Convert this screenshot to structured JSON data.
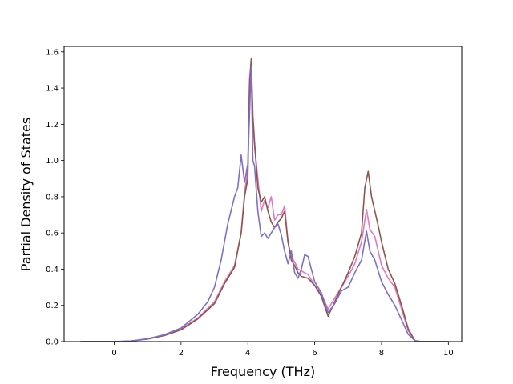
{
  "chart_data": {
    "type": "line",
    "title": "",
    "xlabel": "Frequency (THz)",
    "ylabel": "Partial Density of States",
    "xlim": [
      -1.5,
      10.4
    ],
    "ylim": [
      0,
      1.63
    ],
    "xticks": [
      0,
      2,
      4,
      6,
      8,
      10
    ],
    "yticks": [
      0.0,
      0.2,
      0.4,
      0.6,
      0.8,
      1.0,
      1.2,
      1.4,
      1.6
    ],
    "grid": false,
    "legend": "none",
    "series": [
      {
        "color": "#e377c2",
        "points": [
          [
            -1.0,
            0
          ],
          [
            0,
            0
          ],
          [
            0.5,
            0.003
          ],
          [
            1.0,
            0.015
          ],
          [
            1.5,
            0.035
          ],
          [
            2.0,
            0.07
          ],
          [
            2.5,
            0.13
          ],
          [
            3.0,
            0.22
          ],
          [
            3.3,
            0.33
          ],
          [
            3.6,
            0.42
          ],
          [
            3.8,
            0.6
          ],
          [
            3.9,
            0.82
          ],
          [
            4.0,
            0.95
          ],
          [
            4.05,
            1.45
          ],
          [
            4.1,
            1.55
          ],
          [
            4.15,
            1.2
          ],
          [
            4.2,
            1.08
          ],
          [
            4.3,
            0.9
          ],
          [
            4.4,
            0.72
          ],
          [
            4.5,
            0.78
          ],
          [
            4.6,
            0.74
          ],
          [
            4.7,
            0.8
          ],
          [
            4.8,
            0.67
          ],
          [
            4.9,
            0.7
          ],
          [
            5.0,
            0.7
          ],
          [
            5.1,
            0.75
          ],
          [
            5.2,
            0.55
          ],
          [
            5.3,
            0.47
          ],
          [
            5.4,
            0.44
          ],
          [
            5.5,
            0.4
          ],
          [
            5.6,
            0.39
          ],
          [
            5.8,
            0.37
          ],
          [
            6.0,
            0.31
          ],
          [
            6.2,
            0.26
          ],
          [
            6.4,
            0.18
          ],
          [
            6.6,
            0.24
          ],
          [
            6.8,
            0.3
          ],
          [
            7.0,
            0.36
          ],
          [
            7.2,
            0.43
          ],
          [
            7.4,
            0.55
          ],
          [
            7.55,
            0.73
          ],
          [
            7.65,
            0.62
          ],
          [
            7.8,
            0.58
          ],
          [
            7.9,
            0.5
          ],
          [
            8.0,
            0.42
          ],
          [
            8.2,
            0.35
          ],
          [
            8.4,
            0.3
          ],
          [
            8.6,
            0.18
          ],
          [
            8.8,
            0.06
          ],
          [
            9.0,
            0.005
          ],
          [
            9.2,
            0
          ],
          [
            10.0,
            0
          ]
        ]
      },
      {
        "color": "#8c564b",
        "points": [
          [
            -1.0,
            0
          ],
          [
            0,
            0
          ],
          [
            0.5,
            0.003
          ],
          [
            1.0,
            0.014
          ],
          [
            1.5,
            0.033
          ],
          [
            2.0,
            0.065
          ],
          [
            2.5,
            0.125
          ],
          [
            3.0,
            0.21
          ],
          [
            3.3,
            0.32
          ],
          [
            3.6,
            0.41
          ],
          [
            3.8,
            0.6
          ],
          [
            3.9,
            0.8
          ],
          [
            4.0,
            0.9
          ],
          [
            4.05,
            1.4
          ],
          [
            4.1,
            1.56
          ],
          [
            4.15,
            1.25
          ],
          [
            4.2,
            1.1
          ],
          [
            4.3,
            0.85
          ],
          [
            4.4,
            0.77
          ],
          [
            4.5,
            0.8
          ],
          [
            4.6,
            0.72
          ],
          [
            4.7,
            0.66
          ],
          [
            4.8,
            0.63
          ],
          [
            4.9,
            0.66
          ],
          [
            5.0,
            0.68
          ],
          [
            5.1,
            0.72
          ],
          [
            5.2,
            0.55
          ],
          [
            5.3,
            0.45
          ],
          [
            5.4,
            0.42
          ],
          [
            5.5,
            0.38
          ],
          [
            5.6,
            0.36
          ],
          [
            5.8,
            0.35
          ],
          [
            6.0,
            0.31
          ],
          [
            6.2,
            0.25
          ],
          [
            6.4,
            0.14
          ],
          [
            6.6,
            0.22
          ],
          [
            6.8,
            0.3
          ],
          [
            7.0,
            0.38
          ],
          [
            7.2,
            0.47
          ],
          [
            7.4,
            0.6
          ],
          [
            7.5,
            0.85
          ],
          [
            7.6,
            0.94
          ],
          [
            7.7,
            0.8
          ],
          [
            7.8,
            0.72
          ],
          [
            7.9,
            0.64
          ],
          [
            8.0,
            0.55
          ],
          [
            8.2,
            0.4
          ],
          [
            8.4,
            0.32
          ],
          [
            8.6,
            0.2
          ],
          [
            8.8,
            0.07
          ],
          [
            9.0,
            0.005
          ],
          [
            9.2,
            0
          ],
          [
            10.0,
            0
          ]
        ]
      },
      {
        "color": "#7f6fc8",
        "points": [
          [
            -1.0,
            0
          ],
          [
            0,
            0
          ],
          [
            0.5,
            0.003
          ],
          [
            1.0,
            0.016
          ],
          [
            1.5,
            0.038
          ],
          [
            2.0,
            0.075
          ],
          [
            2.5,
            0.15
          ],
          [
            2.8,
            0.22
          ],
          [
            3.0,
            0.3
          ],
          [
            3.2,
            0.45
          ],
          [
            3.4,
            0.65
          ],
          [
            3.6,
            0.8
          ],
          [
            3.7,
            0.85
          ],
          [
            3.8,
            1.03
          ],
          [
            3.9,
            0.88
          ],
          [
            4.0,
            0.98
          ],
          [
            4.1,
            1.52
          ],
          [
            4.15,
            1.0
          ],
          [
            4.2,
            0.97
          ],
          [
            4.3,
            0.72
          ],
          [
            4.4,
            0.58
          ],
          [
            4.5,
            0.6
          ],
          [
            4.6,
            0.57
          ],
          [
            4.7,
            0.6
          ],
          [
            4.8,
            0.63
          ],
          [
            4.9,
            0.65
          ],
          [
            5.0,
            0.59
          ],
          [
            5.1,
            0.5
          ],
          [
            5.2,
            0.43
          ],
          [
            5.3,
            0.5
          ],
          [
            5.4,
            0.38
          ],
          [
            5.5,
            0.35
          ],
          [
            5.6,
            0.4
          ],
          [
            5.7,
            0.48
          ],
          [
            5.8,
            0.47
          ],
          [
            5.9,
            0.4
          ],
          [
            6.0,
            0.33
          ],
          [
            6.2,
            0.27
          ],
          [
            6.4,
            0.16
          ],
          [
            6.6,
            0.21
          ],
          [
            6.8,
            0.28
          ],
          [
            7.0,
            0.3
          ],
          [
            7.2,
            0.38
          ],
          [
            7.4,
            0.45
          ],
          [
            7.55,
            0.61
          ],
          [
            7.65,
            0.5
          ],
          [
            7.8,
            0.45
          ],
          [
            8.0,
            0.33
          ],
          [
            8.2,
            0.26
          ],
          [
            8.4,
            0.2
          ],
          [
            8.6,
            0.12
          ],
          [
            8.8,
            0.04
          ],
          [
            9.0,
            0.005
          ],
          [
            9.2,
            0
          ],
          [
            10.0,
            0
          ]
        ]
      }
    ]
  }
}
